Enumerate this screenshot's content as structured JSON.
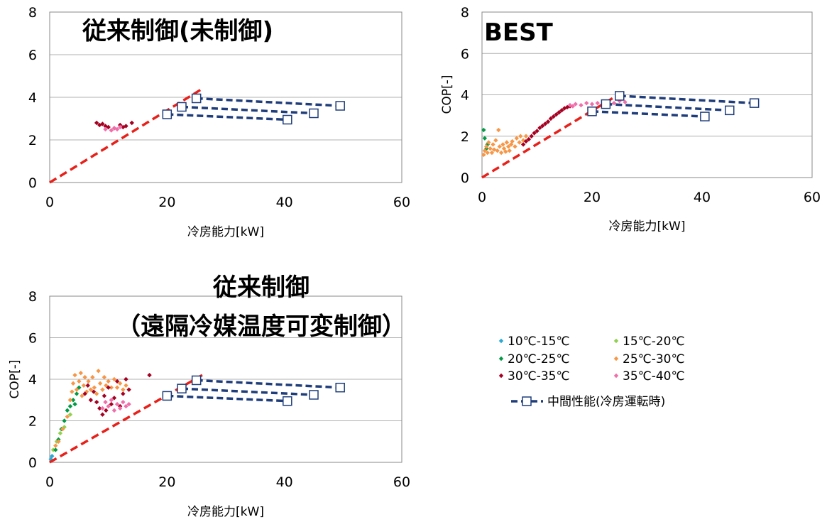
{
  "chart_data": [
    {
      "type": "scatter",
      "title": "従来制御(未制御)",
      "title_lines": [
        "従来制御(未制御)"
      ],
      "xlabel": "冷房能力[kW]",
      "ylabel": "",
      "xlim": [
        0,
        60
      ],
      "ylim": [
        0,
        8
      ],
      "xticks": [
        "0",
        "20",
        "40",
        "60"
      ],
      "yticks": [
        "0",
        "2",
        "4",
        "6",
        "8"
      ],
      "grid": true,
      "scatter_series": [
        {
          "name": "30℃-35℃",
          "color": "#a50021",
          "points": [
            [
              8,
              2.8
            ],
            [
              8.5,
              2.7
            ],
            [
              9,
              2.75
            ],
            [
              9.5,
              2.65
            ],
            [
              10,
              2.6
            ],
            [
              11,
              2.55
            ],
            [
              12,
              2.7
            ],
            [
              12.5,
              2.6
            ],
            [
              13,
              2.65
            ],
            [
              14,
              2.8
            ]
          ]
        },
        {
          "name": "35℃-40℃",
          "color": "#f06eaa",
          "points": [
            [
              9.5,
              2.5
            ],
            [
              10.5,
              2.45
            ],
            [
              11,
              2.55
            ],
            [
              11.5,
              2.5
            ],
            [
              12,
              2.6
            ]
          ]
        }
      ],
      "performance_lines": [
        [
          [
            22.5,
            3.55
          ],
          [
            45,
            3.25
          ]
        ],
        [
          [
            25,
            3.95
          ],
          [
            49.5,
            3.6
          ]
        ],
        [
          [
            20,
            3.2
          ],
          [
            40.5,
            2.95
          ]
        ]
      ],
      "performance_points": [
        [
          20,
          3.2
        ],
        [
          22.5,
          3.55
        ],
        [
          25,
          3.95
        ],
        [
          40.5,
          2.95
        ],
        [
          45,
          3.25
        ],
        [
          49.5,
          3.6
        ]
      ],
      "red_line": [
        [
          0,
          0
        ],
        [
          26,
          4.4
        ]
      ]
    },
    {
      "type": "scatter",
      "title": "BEST",
      "title_lines": [
        "BEST"
      ],
      "xlabel": "冷房能力[kW]",
      "ylabel": "COP[-]",
      "xlim": [
        0,
        60
      ],
      "ylim": [
        0,
        8
      ],
      "xticks": [
        "0",
        "20",
        "40",
        "60"
      ],
      "yticks": [
        "0",
        "2",
        "4",
        "6",
        "8"
      ],
      "grid": true,
      "scatter_series": [
        {
          "name": "20℃-25℃",
          "color": "#009a44",
          "points": [
            [
              0.3,
              2.3
            ],
            [
              0.5,
              1.9
            ],
            [
              1,
              1.6
            ],
            [
              0.8,
              1.4
            ]
          ]
        },
        {
          "name": "25℃-30℃",
          "color": "#f79646",
          "points": [
            [
              0.3,
              1.1
            ],
            [
              0.5,
              1.3
            ],
            [
              0.8,
              1.5
            ],
            [
              1,
              1.2
            ],
            [
              1.2,
              1.7
            ],
            [
              1.5,
              1.4
            ],
            [
              1.8,
              1.2
            ],
            [
              2,
              1.6
            ],
            [
              2.2,
              1.35
            ],
            [
              2.5,
              1.8
            ],
            [
              2.8,
              1.3
            ],
            [
              3,
              2.3
            ],
            [
              3.2,
              1.5
            ],
            [
              3.5,
              1.2
            ],
            [
              3.8,
              1.6
            ],
            [
              4,
              1.4
            ],
            [
              4.3,
              1.25
            ],
            [
              4.5,
              1.7
            ],
            [
              4.8,
              1.5
            ],
            [
              5,
              1.3
            ],
            [
              5.3,
              1.6
            ],
            [
              5.5,
              1.75
            ],
            [
              6,
              1.5
            ],
            [
              6.3,
              1.9
            ],
            [
              6.8,
              1.7
            ],
            [
              7,
              2.0
            ],
            [
              7.5,
              1.8
            ],
            [
              8,
              2.0
            ]
          ]
        },
        {
          "name": "30℃-35℃",
          "color": "#a50021",
          "points": [
            [
              7.5,
              1.6
            ],
            [
              8,
              1.75
            ],
            [
              8.5,
              1.85
            ],
            [
              9,
              2.0
            ],
            [
              9.5,
              2.15
            ],
            [
              10,
              2.25
            ],
            [
              10.5,
              2.4
            ],
            [
              11,
              2.5
            ],
            [
              11.5,
              2.6
            ],
            [
              12,
              2.7
            ],
            [
              12.5,
              2.85
            ],
            [
              13,
              2.95
            ],
            [
              13.5,
              3.05
            ],
            [
              14,
              3.15
            ],
            [
              14.5,
              3.25
            ],
            [
              15,
              3.35
            ],
            [
              15.5,
              3.4
            ],
            [
              16,
              3.45
            ]
          ]
        },
        {
          "name": "35℃-40℃",
          "color": "#f06eaa",
          "points": [
            [
              16,
              3.5
            ],
            [
              16.5,
              3.45
            ],
            [
              17,
              3.55
            ],
            [
              18,
              3.5
            ],
            [
              19,
              3.6
            ],
            [
              20,
              3.55
            ],
            [
              21,
              3.6
            ],
            [
              22,
              3.55
            ],
            [
              23,
              3.65
            ],
            [
              24,
              3.6
            ],
            [
              25,
              3.7
            ],
            [
              26,
              3.65
            ]
          ]
        }
      ],
      "performance_lines": [
        [
          [
            22.5,
            3.55
          ],
          [
            45,
            3.25
          ]
        ],
        [
          [
            25,
            3.95
          ],
          [
            49.5,
            3.6
          ]
        ],
        [
          [
            20,
            3.2
          ],
          [
            40.5,
            2.95
          ]
        ]
      ],
      "performance_points": [
        [
          20,
          3.2
        ],
        [
          22.5,
          3.55
        ],
        [
          25,
          3.95
        ],
        [
          40.5,
          2.95
        ],
        [
          45,
          3.25
        ],
        [
          49.5,
          3.6
        ]
      ],
      "red_line": [
        [
          0,
          0
        ],
        [
          26,
          4.2
        ]
      ]
    },
    {
      "type": "scatter",
      "title": "従来制御（遠隔冷媒温度可変制御）",
      "title_lines": [
        "従来制御",
        "（遠隔冷媒温度可変制御）"
      ],
      "xlabel": "冷房能力[kW]",
      "ylabel": "COP[-]",
      "xlim": [
        0,
        60
      ],
      "ylim": [
        0,
        8
      ],
      "xticks": [
        "0",
        "20",
        "40",
        "60"
      ],
      "yticks": [
        "0",
        "2",
        "4",
        "6",
        "8"
      ],
      "grid": true,
      "scatter_series": [
        {
          "name": "10℃-15℃",
          "color": "#2aa9d6",
          "points": [
            [
              0.2,
              0.15
            ],
            [
              0.4,
              0.3
            ]
          ]
        },
        {
          "name": "15℃-20℃",
          "color": "#92d050",
          "points": [
            [
              0.6,
              0.6
            ],
            [
              1.2,
              1.0
            ],
            [
              1.8,
              1.4
            ],
            [
              2.5,
              1.7
            ],
            [
              3.5,
              2.3
            ]
          ]
        },
        {
          "name": "20℃-25℃",
          "color": "#009a44",
          "points": [
            [
              1.0,
              0.6
            ],
            [
              1.5,
              1.1
            ],
            [
              2.0,
              1.6
            ],
            [
              2.5,
              2.0
            ],
            [
              3.0,
              2.5
            ],
            [
              3.5,
              2.7
            ],
            [
              4.0,
              3.0
            ],
            [
              4.3,
              2.8
            ],
            [
              4.6,
              3.3
            ],
            [
              5.0,
              3.6
            ]
          ]
        },
        {
          "name": "25℃-30℃",
          "color": "#f79646",
          "points": [
            [
              1.0,
              0.8
            ],
            [
              1.5,
              1.0
            ],
            [
              2.2,
              1.6
            ],
            [
              3.0,
              2.2
            ],
            [
              3.5,
              3.0
            ],
            [
              3.8,
              3.4
            ],
            [
              4.0,
              3.8
            ],
            [
              4.3,
              4.2
            ],
            [
              4.6,
              3.5
            ],
            [
              5.0,
              3.9
            ],
            [
              5.3,
              4.3
            ],
            [
              5.5,
              3.2
            ],
            [
              5.8,
              3.7
            ],
            [
              6.0,
              4.1
            ],
            [
              6.3,
              3.4
            ],
            [
              6.6,
              3.9
            ],
            [
              7.0,
              3.5
            ],
            [
              7.3,
              4.1
            ],
            [
              7.6,
              3.6
            ],
            [
              8.0,
              3.3
            ],
            [
              8.3,
              4.4
            ],
            [
              8.6,
              3.8
            ],
            [
              9.0,
              3.5
            ],
            [
              9.3,
              4.1
            ],
            [
              9.6,
              3.7
            ],
            [
              10.0,
              3.9
            ],
            [
              10.5,
              3.6
            ],
            [
              11.0,
              4.0
            ],
            [
              11.5,
              3.6
            ],
            [
              12.0,
              3.8
            ],
            [
              12.5,
              3.5
            ],
            [
              13.0,
              3.7
            ]
          ]
        },
        {
          "name": "30℃-35℃",
          "color": "#a50021",
          "points": [
            [
              6.0,
              3.3
            ],
            [
              6.5,
              3.7
            ],
            [
              7.0,
              3.0
            ],
            [
              7.5,
              3.4
            ],
            [
              8.0,
              2.9
            ],
            [
              8.5,
              2.6
            ],
            [
              9.0,
              2.3
            ],
            [
              9.3,
              3.2
            ],
            [
              9.6,
              2.5
            ],
            [
              10.0,
              3.6
            ],
            [
              10.5,
              2.8
            ],
            [
              11.0,
              3.1
            ],
            [
              11.5,
              3.9
            ],
            [
              12.0,
              2.7
            ],
            [
              12.5,
              3.3
            ],
            [
              13.0,
              4.0
            ],
            [
              13.5,
              3.5
            ],
            [
              17.0,
              4.2
            ]
          ]
        },
        {
          "name": "35℃-40℃",
          "color": "#f06eaa",
          "points": [
            [
              9.0,
              2.6
            ],
            [
              9.5,
              2.9
            ],
            [
              10.0,
              2.7
            ],
            [
              10.5,
              3.0
            ],
            [
              11.0,
              2.5
            ],
            [
              11.5,
              2.8
            ],
            [
              12.0,
              2.6
            ],
            [
              12.5,
              2.9
            ],
            [
              13.0,
              2.7
            ],
            [
              13.5,
              2.8
            ]
          ]
        }
      ],
      "performance_lines": [
        [
          [
            22.5,
            3.55
          ],
          [
            45,
            3.25
          ]
        ],
        [
          [
            25,
            3.95
          ],
          [
            49.5,
            3.6
          ]
        ],
        [
          [
            20,
            3.2
          ],
          [
            40.5,
            2.95
          ]
        ]
      ],
      "performance_points": [
        [
          20,
          3.2
        ],
        [
          22.5,
          3.55
        ],
        [
          25,
          3.95
        ],
        [
          40.5,
          2.95
        ],
        [
          45,
          3.25
        ],
        [
          49.5,
          3.6
        ]
      ],
      "red_line": [
        [
          0,
          0
        ],
        [
          26,
          4.2
        ]
      ]
    }
  ],
  "legend": {
    "placement": "bottom-right",
    "items": [
      {
        "label": "10℃-15℃",
        "color": "#2aa9d6"
      },
      {
        "label": "15℃-20℃",
        "color": "#92d050"
      },
      {
        "label": "20℃-25℃",
        "color": "#009a44"
      },
      {
        "label": "25℃-30℃",
        "color": "#f79646"
      },
      {
        "label": "30℃-35℃",
        "color": "#a50021"
      },
      {
        "label": "35℃-40℃",
        "color": "#f06eaa"
      }
    ],
    "line_label": "中間性能(冷房運転時)",
    "line_color": "#1f3d7a"
  },
  "colors": {
    "reference_line": "#e8201a",
    "performance_line": "#1f3d7a",
    "grid": "#b0b0b0"
  }
}
